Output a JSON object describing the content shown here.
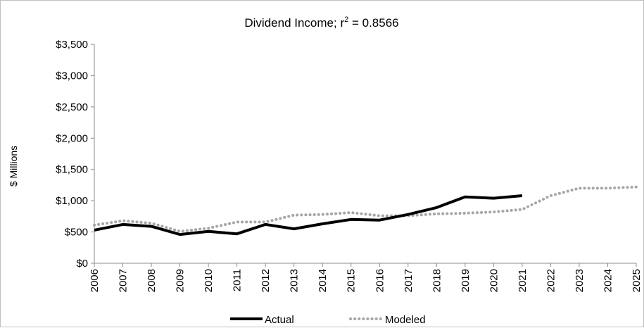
{
  "chart_data": {
    "type": "line",
    "title_prefix": "Dividend Income; r",
    "title_sup": "2",
    "title_suffix": " = 0.8566",
    "ylabel": "$ Millions",
    "xlabel": "",
    "ylim": [
      0,
      3500
    ],
    "y_ticks": [
      0,
      500,
      1000,
      1500,
      2000,
      2500,
      3000,
      3500
    ],
    "y_tick_labels": [
      "$0",
      "$500",
      "$1,000",
      "$1,500",
      "$2,000",
      "$2,500",
      "$3,000",
      "$3,500"
    ],
    "categories": [
      "2006",
      "2007",
      "2008",
      "2009",
      "2010",
      "2011",
      "2012",
      "2013",
      "2014",
      "2015",
      "2016",
      "2017",
      "2018",
      "2019",
      "2020",
      "2021",
      "2022",
      "2023",
      "2024",
      "2025"
    ],
    "grid": false,
    "legend_position": "bottom",
    "series": [
      {
        "name": "Actual",
        "color": "#000000",
        "style": "solid",
        "values": [
          530,
          620,
          590,
          460,
          510,
          470,
          620,
          550,
          630,
          700,
          690,
          780,
          890,
          1060,
          1040,
          1080,
          null,
          null,
          null,
          null
        ]
      },
      {
        "name": "Modeled",
        "color": "#a6a6a6",
        "style": "dotted",
        "values": [
          610,
          680,
          640,
          510,
          560,
          660,
          660,
          770,
          780,
          810,
          760,
          760,
          790,
          800,
          820,
          860,
          1080,
          1200,
          1200,
          1220
        ]
      }
    ]
  }
}
